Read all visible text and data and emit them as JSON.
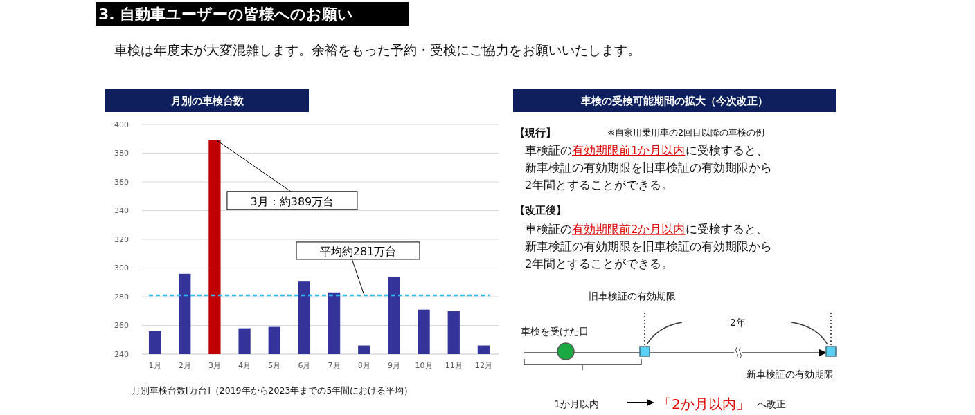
{
  "chart_data": [
    {
      "type": "other",
      "title": "3. 自動車ユーザーの皆様へのお願い",
      "subtitle": "車検は年度末が大変混雑します。余裕をもった予約・受検にご協力をお願いいたします。"
    },
    {
      "type": "bar",
      "title": "月別の車検台数",
      "xlabel": "月別車検台数[万台]（2019年から2023年までの5年間における平均）",
      "categories": [
        "1月",
        "2月",
        "3月",
        "4月",
        "5月",
        "6月",
        "7月",
        "8月",
        "9月",
        "10月",
        "11月",
        "12月"
      ],
      "values": [
        256,
        296,
        389,
        258,
        259,
        291,
        283,
        246,
        294,
        271,
        270,
        246
      ],
      "colors": [
        "#333399",
        "#333399",
        "#c00000",
        "#333399",
        "#333399",
        "#333399",
        "#333399",
        "#333399",
        "#333399",
        "#333399",
        "#333399",
        "#333399"
      ],
      "ylim": [
        240,
        400
      ],
      "yticks": [
        240,
        260,
        280,
        300,
        320,
        340,
        360,
        380,
        400
      ],
      "grid": "y",
      "ref_lines": [
        {
          "axis": "y",
          "value": 281,
          "label": "平均約281万台",
          "color": "#33bbee",
          "line_style": "dashed"
        }
      ],
      "annotations": [
        {
          "text": "3月：約389万台",
          "x": "3月",
          "y": 389
        }
      ]
    },
    {
      "type": "other",
      "title": "車検の受検可能期間の拡大（今次改正）",
      "annotations": [
        "【現行】",
        "※自家用乗用車の2回目以降の車検の例",
        "車検証の",
        "有効期限前1か月以内",
        "に受検すると、",
        "新車検証の有効期限を旧車検証の有効期限から",
        "2年間とすることができる。",
        "【改正後】",
        "車検証の",
        "有効期限前2か月以内",
        "に受検すると、",
        "新車検証の有効期限を旧車検証の有効期限から",
        "2年間とすることができる。",
        "旧車検証の有効期限",
        "車検を受けた日",
        "2年",
        "新車検証の有効期限",
        "1か月以内",
        "「2か月以内」",
        "へ改正"
      ]
    }
  ]
}
